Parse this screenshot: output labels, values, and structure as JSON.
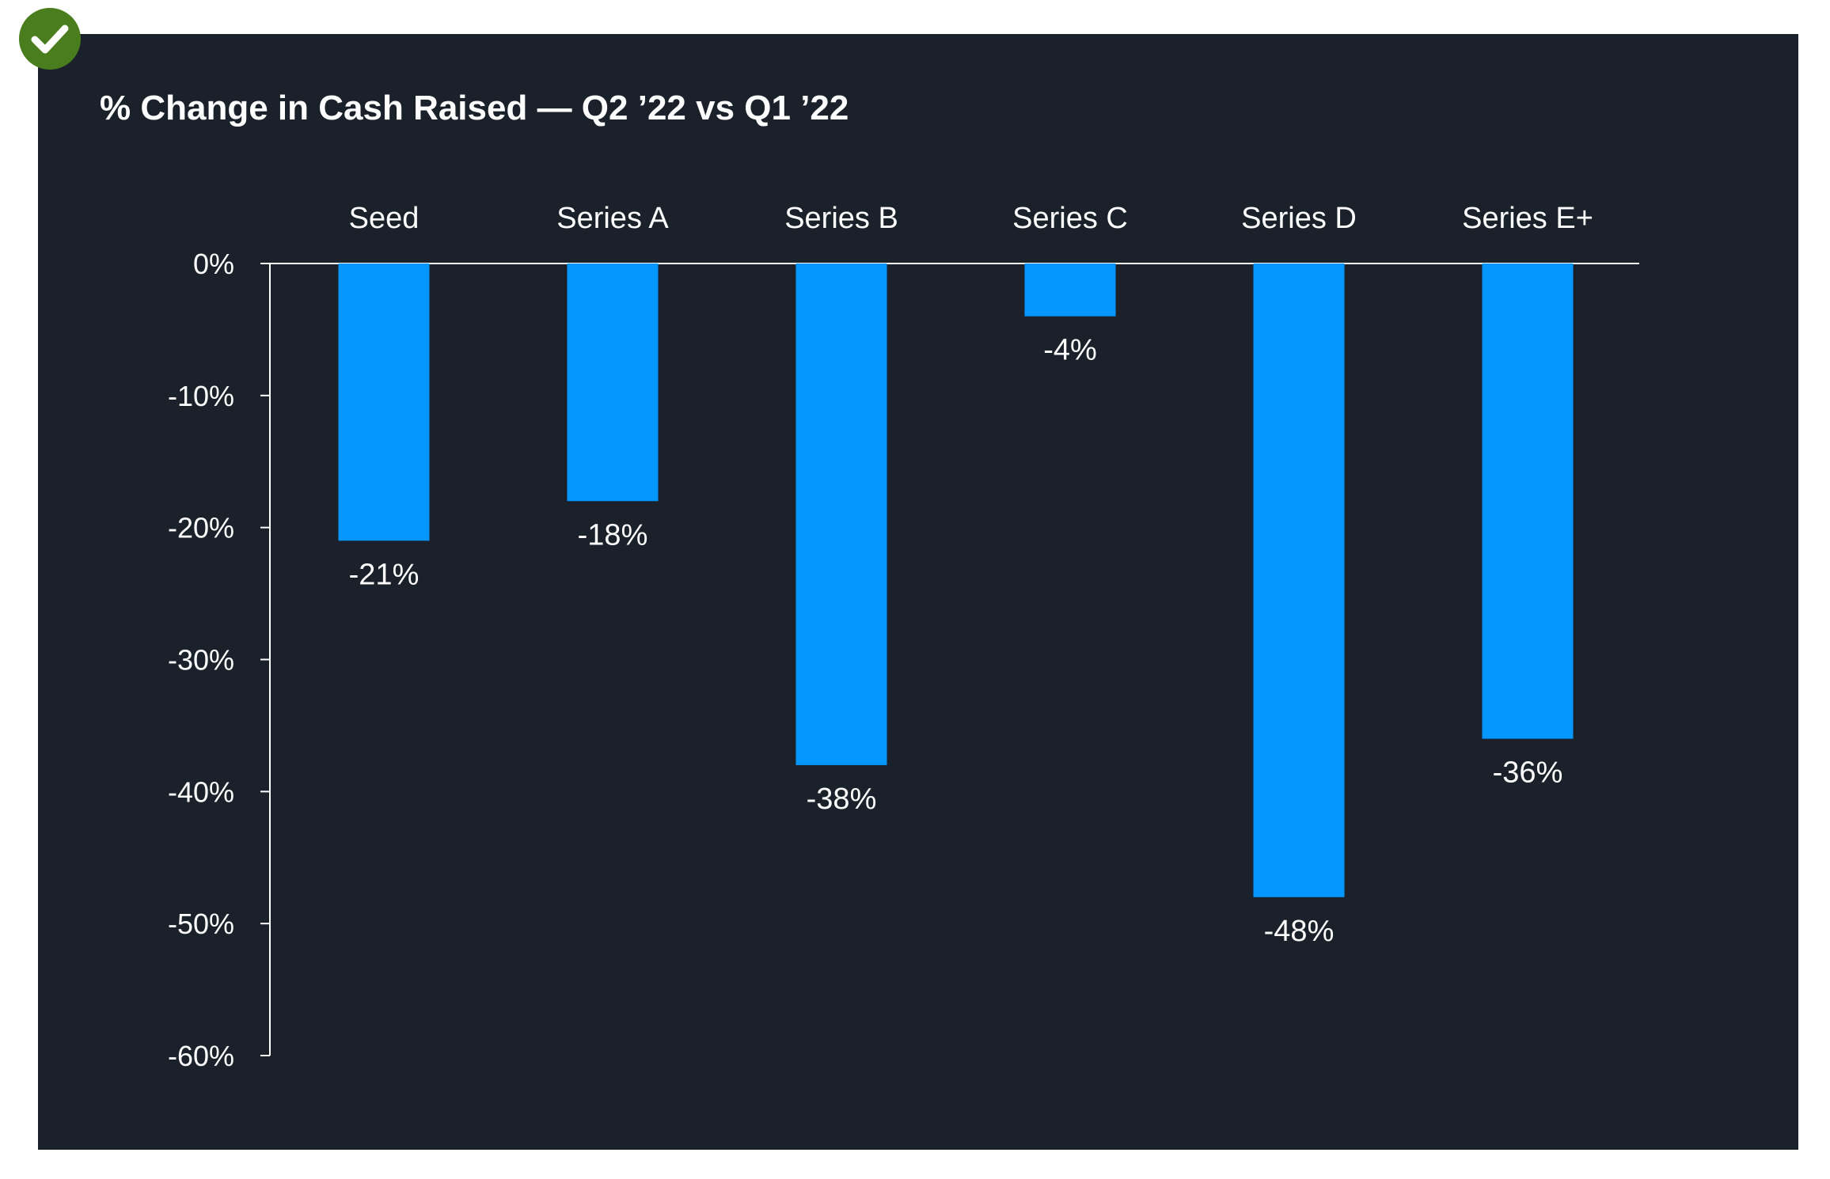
{
  "badge": {
    "icon": "check-circle-icon",
    "color": "#4a7d1e"
  },
  "colors": {
    "panel_background": "#1b212a",
    "bar": "#0596ff",
    "text": "#ffffff",
    "axis": "#ffffff"
  },
  "chart_data": {
    "type": "bar",
    "title": "% Change in Cash Raised — Q2 ’22 vs Q1 ’22",
    "categories": [
      "Seed",
      "Series A",
      "Series B",
      "Series C",
      "Series D",
      "Series E+"
    ],
    "values": [
      -21,
      -18,
      -38,
      -4,
      -48,
      -36
    ],
    "value_labels": [
      "-21%",
      "-18%",
      "-38%",
      "-4%",
      "-48%",
      "-36%"
    ],
    "ylim": [
      -60,
      0
    ],
    "y_ticks": [
      0,
      -10,
      -20,
      -30,
      -40,
      -50,
      -60
    ],
    "y_tick_labels": [
      "0%",
      "-10%",
      "-20%",
      "-30%",
      "-40%",
      "-50%",
      "-60%"
    ],
    "xlabel": "",
    "ylabel": "",
    "category_axis_position": "top",
    "grid": false,
    "legend": false
  }
}
